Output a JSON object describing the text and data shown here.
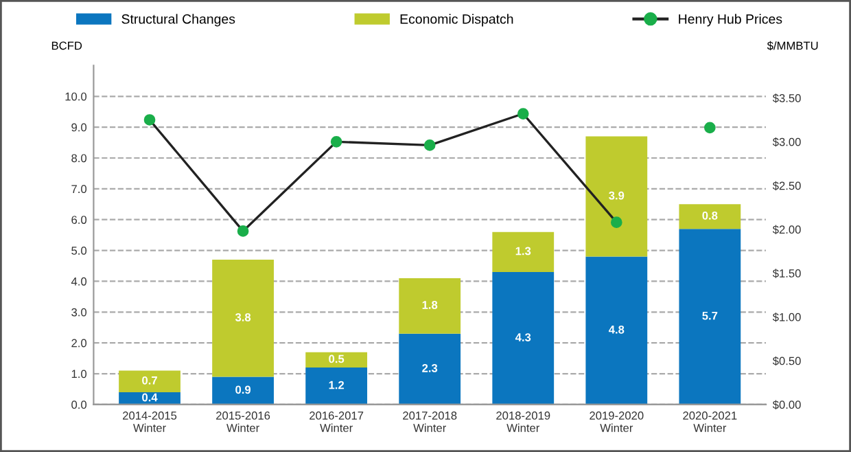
{
  "chart_data": {
    "type": "bar",
    "stacked": true,
    "ylabel": "BCFD",
    "y2label": "$/MMBTU",
    "categories": [
      "2014-2015\nWinter",
      "2015-2016\nWinter",
      "2016-2017\nWinter",
      "2017-2018\nWinter",
      "2018-2019\nWinter",
      "2019-2020\nWinter",
      "2020-2021\nWinter"
    ],
    "series": [
      {
        "name": "Structural Changes",
        "color": "#0b76bf",
        "values": [
          0.4,
          0.9,
          1.2,
          2.3,
          4.3,
          4.8,
          5.7
        ],
        "value_labels": [
          "0.4",
          "0.9",
          "1.2",
          "2.3",
          "4.3",
          "4.8",
          "5.7"
        ]
      },
      {
        "name": "Economic Dispatch",
        "color": "#bfcb2e",
        "values": [
          0.7,
          3.8,
          0.5,
          1.8,
          1.3,
          3.9,
          0.8
        ],
        "value_labels": [
          "0.7",
          "3.8",
          "0.5",
          "1.8",
          "1.3",
          "3.9",
          "0.8"
        ]
      },
      {
        "name": "Henry Hub Prices",
        "type": "line",
        "axis": "y2",
        "color": "#1aae4a",
        "values": [
          3.25,
          1.98,
          3.0,
          2.96,
          3.32,
          2.08,
          null
        ]
      },
      {
        "type": "scatter",
        "axis": "y2",
        "color": "#1aae4a",
        "values": [
          null,
          null,
          null,
          null,
          null,
          null,
          3.16
        ]
      }
    ],
    "ylim": [
      0,
      11
    ],
    "yticks": [
      {
        "value": 0,
        "label": "0.0"
      },
      {
        "value": 1,
        "label": "1.0"
      },
      {
        "value": 2,
        "label": "2.0"
      },
      {
        "value": 3,
        "label": "3.0"
      },
      {
        "value": 4,
        "label": "4.0"
      },
      {
        "value": 5,
        "label": "5.0"
      },
      {
        "value": 6,
        "label": "6.0"
      },
      {
        "value": 7,
        "label": "7.0"
      },
      {
        "value": 8,
        "label": "8.0"
      },
      {
        "value": 9,
        "label": "9.0"
      },
      {
        "value": 10,
        "label": "10.0"
      }
    ],
    "y2lim": [
      0,
      3.87
    ],
    "y2ticks": [
      {
        "value": 0,
        "label": "$0.00"
      },
      {
        "value": 0.5,
        "label": "$0.50"
      },
      {
        "value": 1,
        "label": "$1.00"
      },
      {
        "value": 1.5,
        "label": "$1.50"
      },
      {
        "value": 2,
        "label": "$2.00"
      },
      {
        "value": 2.5,
        "label": "$2.50"
      },
      {
        "value": 3,
        "label": "$3.00"
      },
      {
        "value": 3.5,
        "label": "$3.50"
      }
    ],
    "grid": "y",
    "legend": "top",
    "marker": "circle"
  }
}
